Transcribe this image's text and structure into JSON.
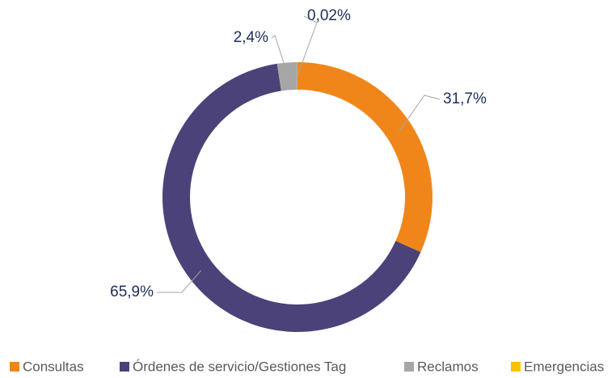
{
  "chart_data": {
    "type": "donut",
    "categories": [
      "Consultas",
      "Órdenes de servicio/Gestiones Tag",
      "Reclamos",
      "Emergencias"
    ],
    "values": [
      31.7,
      65.9,
      2.4,
      0.02
    ],
    "value_labels": [
      "31,7%",
      "65,9%",
      "2,4%",
      "0,02%"
    ],
    "colors": [
      "#f0861a",
      "#4a4278",
      "#a6a6a6",
      "#ffc000"
    ],
    "legend": "bottom"
  }
}
